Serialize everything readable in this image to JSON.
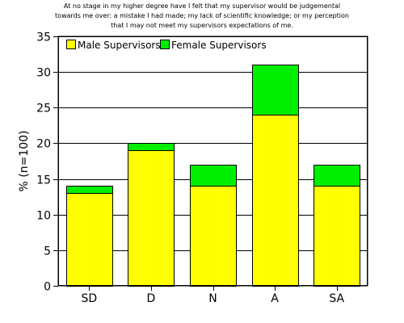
{
  "chart_data": {
    "type": "bar",
    "stacked": true,
    "title_lines": [
      "At no stage in my higher degree have I felt that my supervisor would be judgemental",
      "towards me over: a mistake I had made; my lack of scientific knowledge; or my perception",
      "that I may not meet my supervisors expectations of me."
    ],
    "xlabel": "",
    "ylabel": "% (n=100)",
    "categories": [
      "SD",
      "D",
      "N",
      "A",
      "SA"
    ],
    "series": [
      {
        "name": "Male Supervisors",
        "values": [
          13,
          19,
          14,
          24,
          14
        ],
        "color": "#ffff00"
      },
      {
        "name": "Female Supervisors",
        "values": [
          1,
          1,
          3,
          7,
          3
        ],
        "color": "#00ee00"
      }
    ],
    "ylim": [
      0,
      35
    ],
    "yticks": [
      0,
      5,
      10,
      15,
      20,
      25,
      30,
      35
    ],
    "grid": true,
    "legend_position": "top-left"
  }
}
